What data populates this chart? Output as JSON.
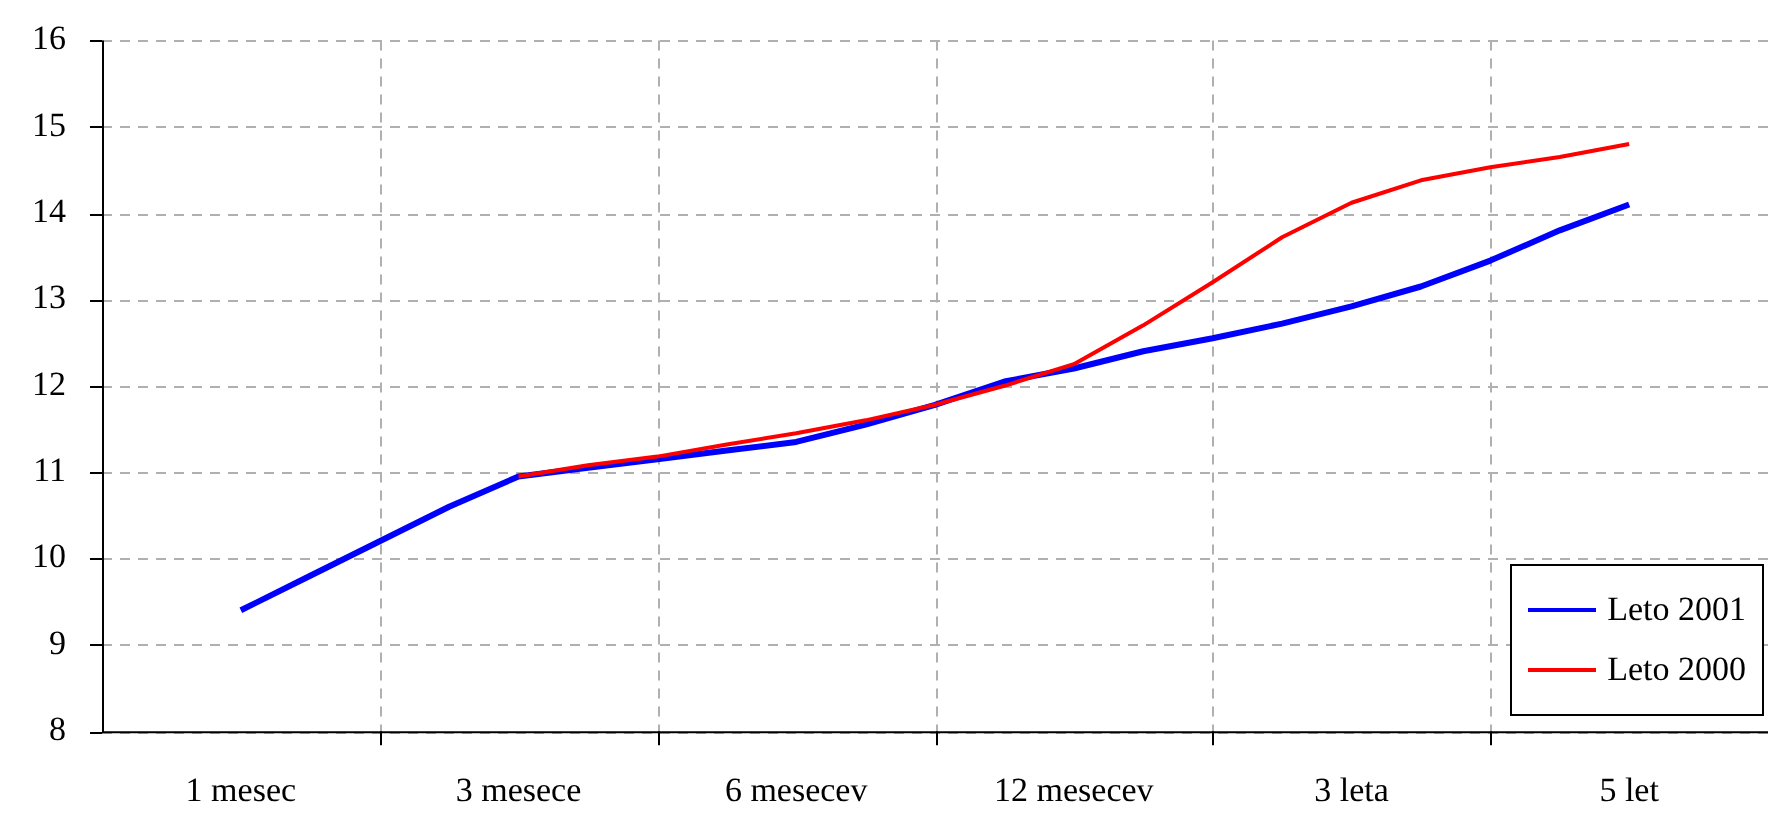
{
  "chart_data": {
    "type": "line",
    "categories": [
      null,
      null,
      "1 mesec",
      null,
      null,
      null,
      "3 mesece",
      null,
      null,
      null,
      "6 mesecev",
      null,
      null,
      null,
      "12 mesecev",
      null,
      null,
      null,
      "3 leta",
      null,
      null,
      null,
      "5 let",
      null,
      null
    ],
    "ylim": [
      8,
      16
    ],
    "yticks": [
      8,
      9,
      10,
      11,
      12,
      13,
      14,
      15,
      16
    ],
    "grid": true,
    "legend": "bottom right",
    "series": [
      {
        "name": "Leto 2001",
        "color": "#0000ff",
        "values": [
          null,
          null,
          9.4,
          9.8,
          10.2,
          10.6,
          10.95,
          11.05,
          11.15,
          11.25,
          11.35,
          11.55,
          11.78,
          12.05,
          12.2,
          12.4,
          12.55,
          12.72,
          12.92,
          13.15,
          13.45,
          13.8,
          14.1,
          null,
          null
        ]
      },
      {
        "name": "Leto 2000",
        "color": "#ff0000",
        "values": [
          null,
          null,
          null,
          null,
          null,
          null,
          10.95,
          11.08,
          11.18,
          11.32,
          11.45,
          11.6,
          11.78,
          12.0,
          12.25,
          12.7,
          13.2,
          13.72,
          14.12,
          14.38,
          14.53,
          14.65,
          14.8,
          null,
          null
        ]
      }
    ]
  }
}
